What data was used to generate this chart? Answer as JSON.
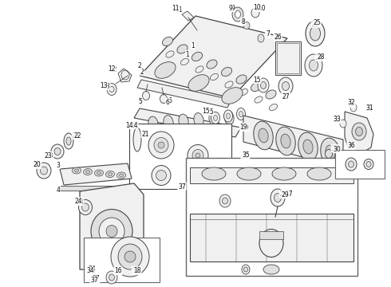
{
  "bg_color": "#ffffff",
  "lc": "#444444",
  "fc_light": "#f0f0f0",
  "fc_mid": "#e0e0e0",
  "fc_dark": "#cccccc",
  "fig_width": 4.9,
  "fig_height": 3.6,
  "dpi": 100
}
